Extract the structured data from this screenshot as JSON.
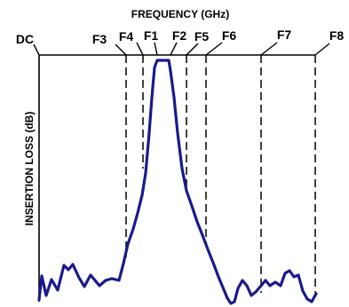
{
  "x_axis_title": "FREQUENCY (GHz)",
  "y_axis_title": "INSERTION LOSS (dB)",
  "frequency_markers": [
    "DC",
    "F3",
    "F4",
    "F1",
    "F2",
    "F5",
    "F6",
    "F7",
    "F8"
  ],
  "colors": {
    "curve": "#1a1a8c",
    "lines": "#000000"
  }
}
